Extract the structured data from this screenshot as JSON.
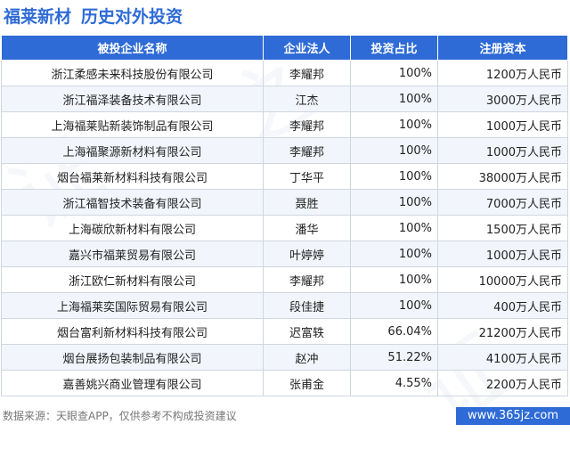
{
  "header": {
    "company": "福莱新材",
    "section": "历史对外投资"
  },
  "table": {
    "columns": [
      "被投企业名称",
      "企业法人",
      "投资占比",
      "注册资本"
    ],
    "rows": [
      [
        "浙江柔感未来科技股份有限公司",
        "李耀邦",
        "100%",
        "1200万人民币"
      ],
      [
        "浙江福泽装备技术有限公司",
        "江杰",
        "100%",
        "3000万人民币"
      ],
      [
        "上海福莱贴新装饰制品有限公司",
        "李耀邦",
        "100%",
        "1000万人民币"
      ],
      [
        "上海福聚源新材料有限公司",
        "李耀邦",
        "100%",
        "1000万人民币"
      ],
      [
        "烟台福莱新材料科技有限公司",
        "丁华平",
        "100%",
        "38000万人民币"
      ],
      [
        "浙江福智技术装备有限公司",
        "聂胜",
        "100%",
        "7000万人民币"
      ],
      [
        "上海碳欣新材料有限公司",
        "潘华",
        "100%",
        "1500万人民币"
      ],
      [
        "嘉兴市福莱贸易有限公司",
        "叶婷婷",
        "100%",
        "1000万人民币"
      ],
      [
        "浙江欧仁新材料有限公司",
        "李耀邦",
        "100%",
        "10000万人民币"
      ],
      [
        "上海福莱奕国际贸易有限公司",
        "段佳捷",
        "100%",
        "400万人民币"
      ],
      [
        "烟台富利新材料科技有限公司",
        "迟富轶",
        "66.04%",
        "21200万人民币"
      ],
      [
        "烟台展扬包装制品有限公司",
        "赵冲",
        "51.22%",
        "4100万人民币"
      ],
      [
        "嘉善姚兴商业管理有限公司",
        "张甫金",
        "4.55%",
        "2200万人民币"
      ]
    ]
  },
  "footer": {
    "source": "数据来源：天眼查APP，仅供参考不构成投资建议",
    "site": "www.365jz.com"
  },
  "watermark": [
    "证",
    "之",
    "证"
  ],
  "colors": {
    "accent": "#2e6bd6"
  }
}
